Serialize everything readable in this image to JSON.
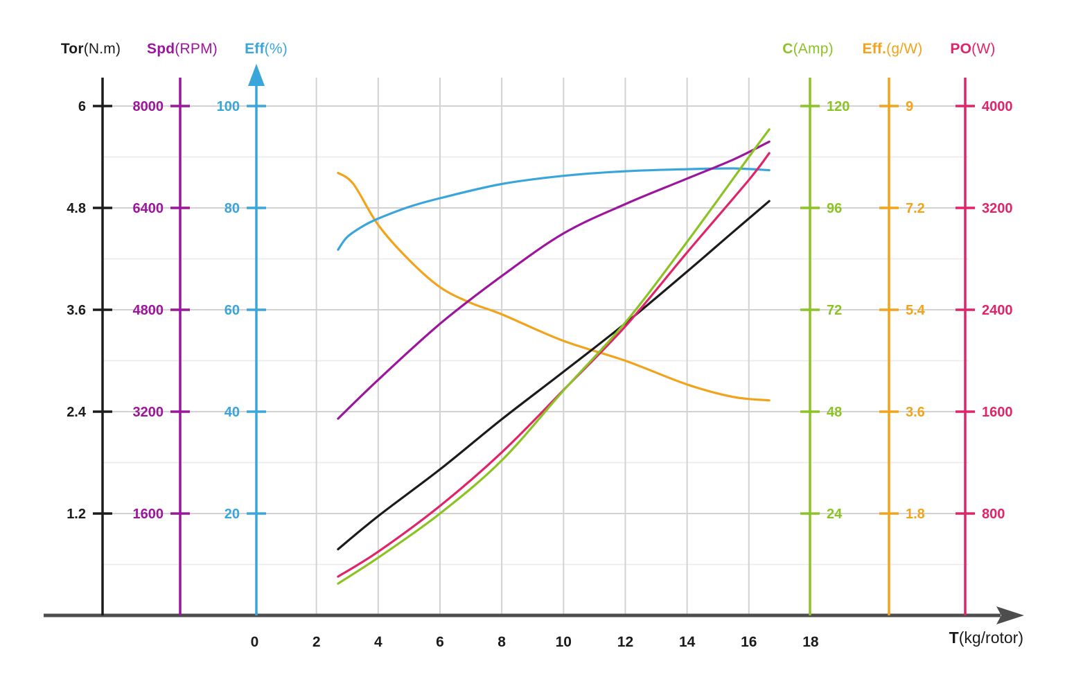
{
  "chart_data": {
    "type": "line",
    "title": "",
    "grid": "on",
    "colors": {
      "background": "#ffffff",
      "grid_major": "#d2d2d2",
      "grid_minor": "#ebebeb",
      "x_axis": "#4d4d4d"
    },
    "x_axis": {
      "name": "T",
      "unit": "(kg/rotor)",
      "ticks": [
        0,
        2,
        4,
        6,
        8,
        10,
        12,
        14,
        16,
        18
      ],
      "range": [
        0,
        18
      ]
    },
    "axes": [
      {
        "key": "tor",
        "name": "Tor",
        "unit": "(N.m)",
        "color": "#1b1b1b",
        "side": "left",
        "ticks": [
          6,
          4.8,
          3.6,
          2.4,
          1.2
        ],
        "top_value": 6,
        "grid_step": 1.2,
        "has_arrow": false
      },
      {
        "key": "spd",
        "name": "Spd",
        "unit": "(RPM)",
        "color": "#9c169c",
        "side": "left",
        "ticks": [
          8000,
          6400,
          4800,
          3200,
          1600
        ],
        "top_value": 8000,
        "grid_step": 1600,
        "has_arrow": false
      },
      {
        "key": "eff",
        "name": "Eff",
        "unit": "(%)",
        "color": "#3aa5da",
        "side": "left",
        "ticks": [
          100,
          80,
          60,
          40,
          20
        ],
        "top_value": 100,
        "grid_step": 20,
        "has_arrow": true
      },
      {
        "key": "c",
        "name": "C",
        "unit": "(Amp)",
        "color": "#8cc324",
        "side": "right",
        "ticks": [
          120,
          96,
          72,
          48,
          24
        ],
        "top_value": 120,
        "grid_step": 24,
        "has_arrow": false
      },
      {
        "key": "effgw",
        "name": "Eff.",
        "unit": "(g/W)",
        "color": "#f2a31c",
        "side": "right",
        "ticks": [
          9,
          7.2,
          5.4,
          3.6,
          1.8
        ],
        "top_value": 9,
        "grid_step": 1.8,
        "has_arrow": false
      },
      {
        "key": "po",
        "name": "PO",
        "unit": "(W)",
        "color": "#e0246a",
        "side": "right",
        "ticks": [
          4000,
          3200,
          2400,
          1600,
          800
        ],
        "top_value": 4000,
        "grid_step": 800,
        "has_arrow": false
      }
    ],
    "series": [
      {
        "name": "Eff.",
        "axis": "effgw",
        "color": "#f2a31c",
        "points": [
          [
            2.7,
            7.82
          ],
          [
            3.2,
            7.62
          ],
          [
            4,
            6.9
          ],
          [
            5,
            6.28
          ],
          [
            6,
            5.8
          ],
          [
            7,
            5.52
          ],
          [
            8,
            5.32
          ],
          [
            10,
            4.85
          ],
          [
            12,
            4.5
          ],
          [
            14,
            4.08
          ],
          [
            15.5,
            3.86
          ],
          [
            16.66,
            3.8
          ]
        ]
      },
      {
        "name": "Eff",
        "axis": "eff",
        "color": "#3aa5da",
        "points": [
          [
            2.7,
            71.8
          ],
          [
            3,
            74.3
          ],
          [
            3.5,
            76.4
          ],
          [
            4,
            77.9
          ],
          [
            5,
            80.2
          ],
          [
            6,
            81.9
          ],
          [
            8,
            84.7
          ],
          [
            10,
            86.3
          ],
          [
            12,
            87.2
          ],
          [
            14,
            87.6
          ],
          [
            15.5,
            87.75
          ],
          [
            16.66,
            87.4
          ]
        ]
      },
      {
        "name": "Spd",
        "axis": "spd",
        "color": "#9c169c",
        "points": [
          [
            2.7,
            3090
          ],
          [
            4,
            3700
          ],
          [
            6,
            4580
          ],
          [
            8,
            5330
          ],
          [
            10,
            6000
          ],
          [
            12,
            6460
          ],
          [
            14,
            6860
          ],
          [
            15.5,
            7160
          ],
          [
            16.66,
            7440
          ]
        ]
      },
      {
        "name": "Tor",
        "axis": "tor",
        "color": "#1b1b1b",
        "points": [
          [
            2.7,
            0.78
          ],
          [
            4,
            1.17
          ],
          [
            6,
            1.72
          ],
          [
            8,
            2.31
          ],
          [
            10,
            2.87
          ],
          [
            12,
            3.44
          ],
          [
            14,
            4.05
          ],
          [
            15.5,
            4.52
          ],
          [
            16.66,
            4.88
          ]
        ]
      },
      {
        "name": "PO",
        "axis": "po",
        "color": "#e0246a",
        "points": [
          [
            2.7,
            305
          ],
          [
            4,
            500
          ],
          [
            6,
            860
          ],
          [
            8,
            1280
          ],
          [
            10,
            1770
          ],
          [
            12,
            2270
          ],
          [
            14,
            2850
          ],
          [
            16,
            3420
          ],
          [
            16.66,
            3630
          ]
        ]
      },
      {
        "name": "C",
        "axis": "c",
        "color": "#8cc324",
        "points": [
          [
            2.7,
            7.5
          ],
          [
            4,
            13.6
          ],
          [
            6,
            24
          ],
          [
            8,
            36.5
          ],
          [
            10,
            53
          ],
          [
            12,
            69
          ],
          [
            14,
            88
          ],
          [
            16,
            108
          ],
          [
            16.66,
            114.5
          ]
        ]
      }
    ]
  }
}
